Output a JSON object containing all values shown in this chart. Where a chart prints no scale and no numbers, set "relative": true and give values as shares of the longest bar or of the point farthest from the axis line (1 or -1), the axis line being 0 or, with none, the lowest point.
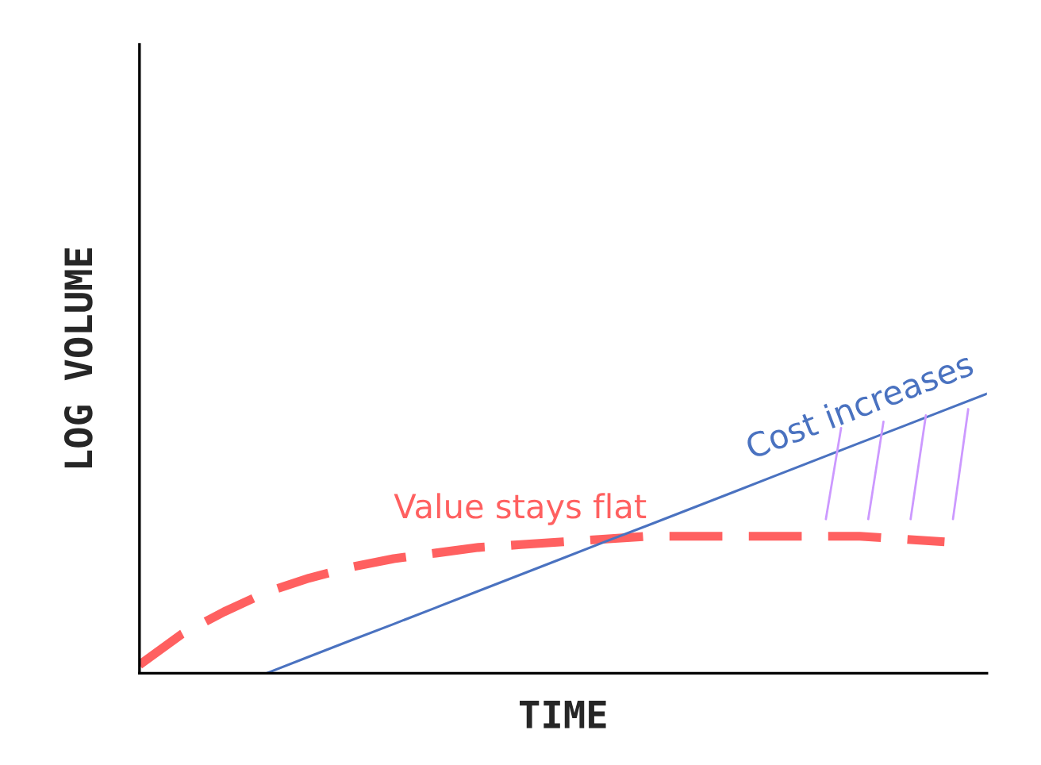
{
  "chart_data": {
    "type": "line",
    "relative": true,
    "xlabel": "TIME",
    "ylabel": "LOG VOLUME",
    "legend": false,
    "marker": "none",
    "categories": [
      null,
      null,
      null,
      null,
      null,
      null,
      null,
      null,
      null,
      null,
      null,
      null,
      null,
      null,
      null,
      null,
      null,
      null,
      null,
      null,
      null
    ],
    "series": [
      {
        "name": "Value stays flat",
        "color": "#ff6060",
        "line_style": "dashed",
        "values": [
          0.03,
          0.14,
          0.22,
          0.29,
          0.34,
          0.38,
          0.41,
          0.43,
          0.45,
          0.46,
          0.47,
          0.48,
          0.49,
          0.49,
          0.49,
          0.49,
          0.49,
          0.49,
          0.48,
          0.47,
          null
        ]
      },
      {
        "name": "Cost increases",
        "color": "#4a72c0",
        "line_style": "solid",
        "values": [
          null,
          null,
          null,
          0.0,
          0.059,
          0.118,
          0.176,
          0.235,
          0.294,
          0.353,
          0.412,
          0.471,
          0.529,
          0.588,
          0.647,
          0.706,
          0.765,
          0.824,
          0.882,
          0.941,
          1.0
        ]
      }
    ]
  }
}
